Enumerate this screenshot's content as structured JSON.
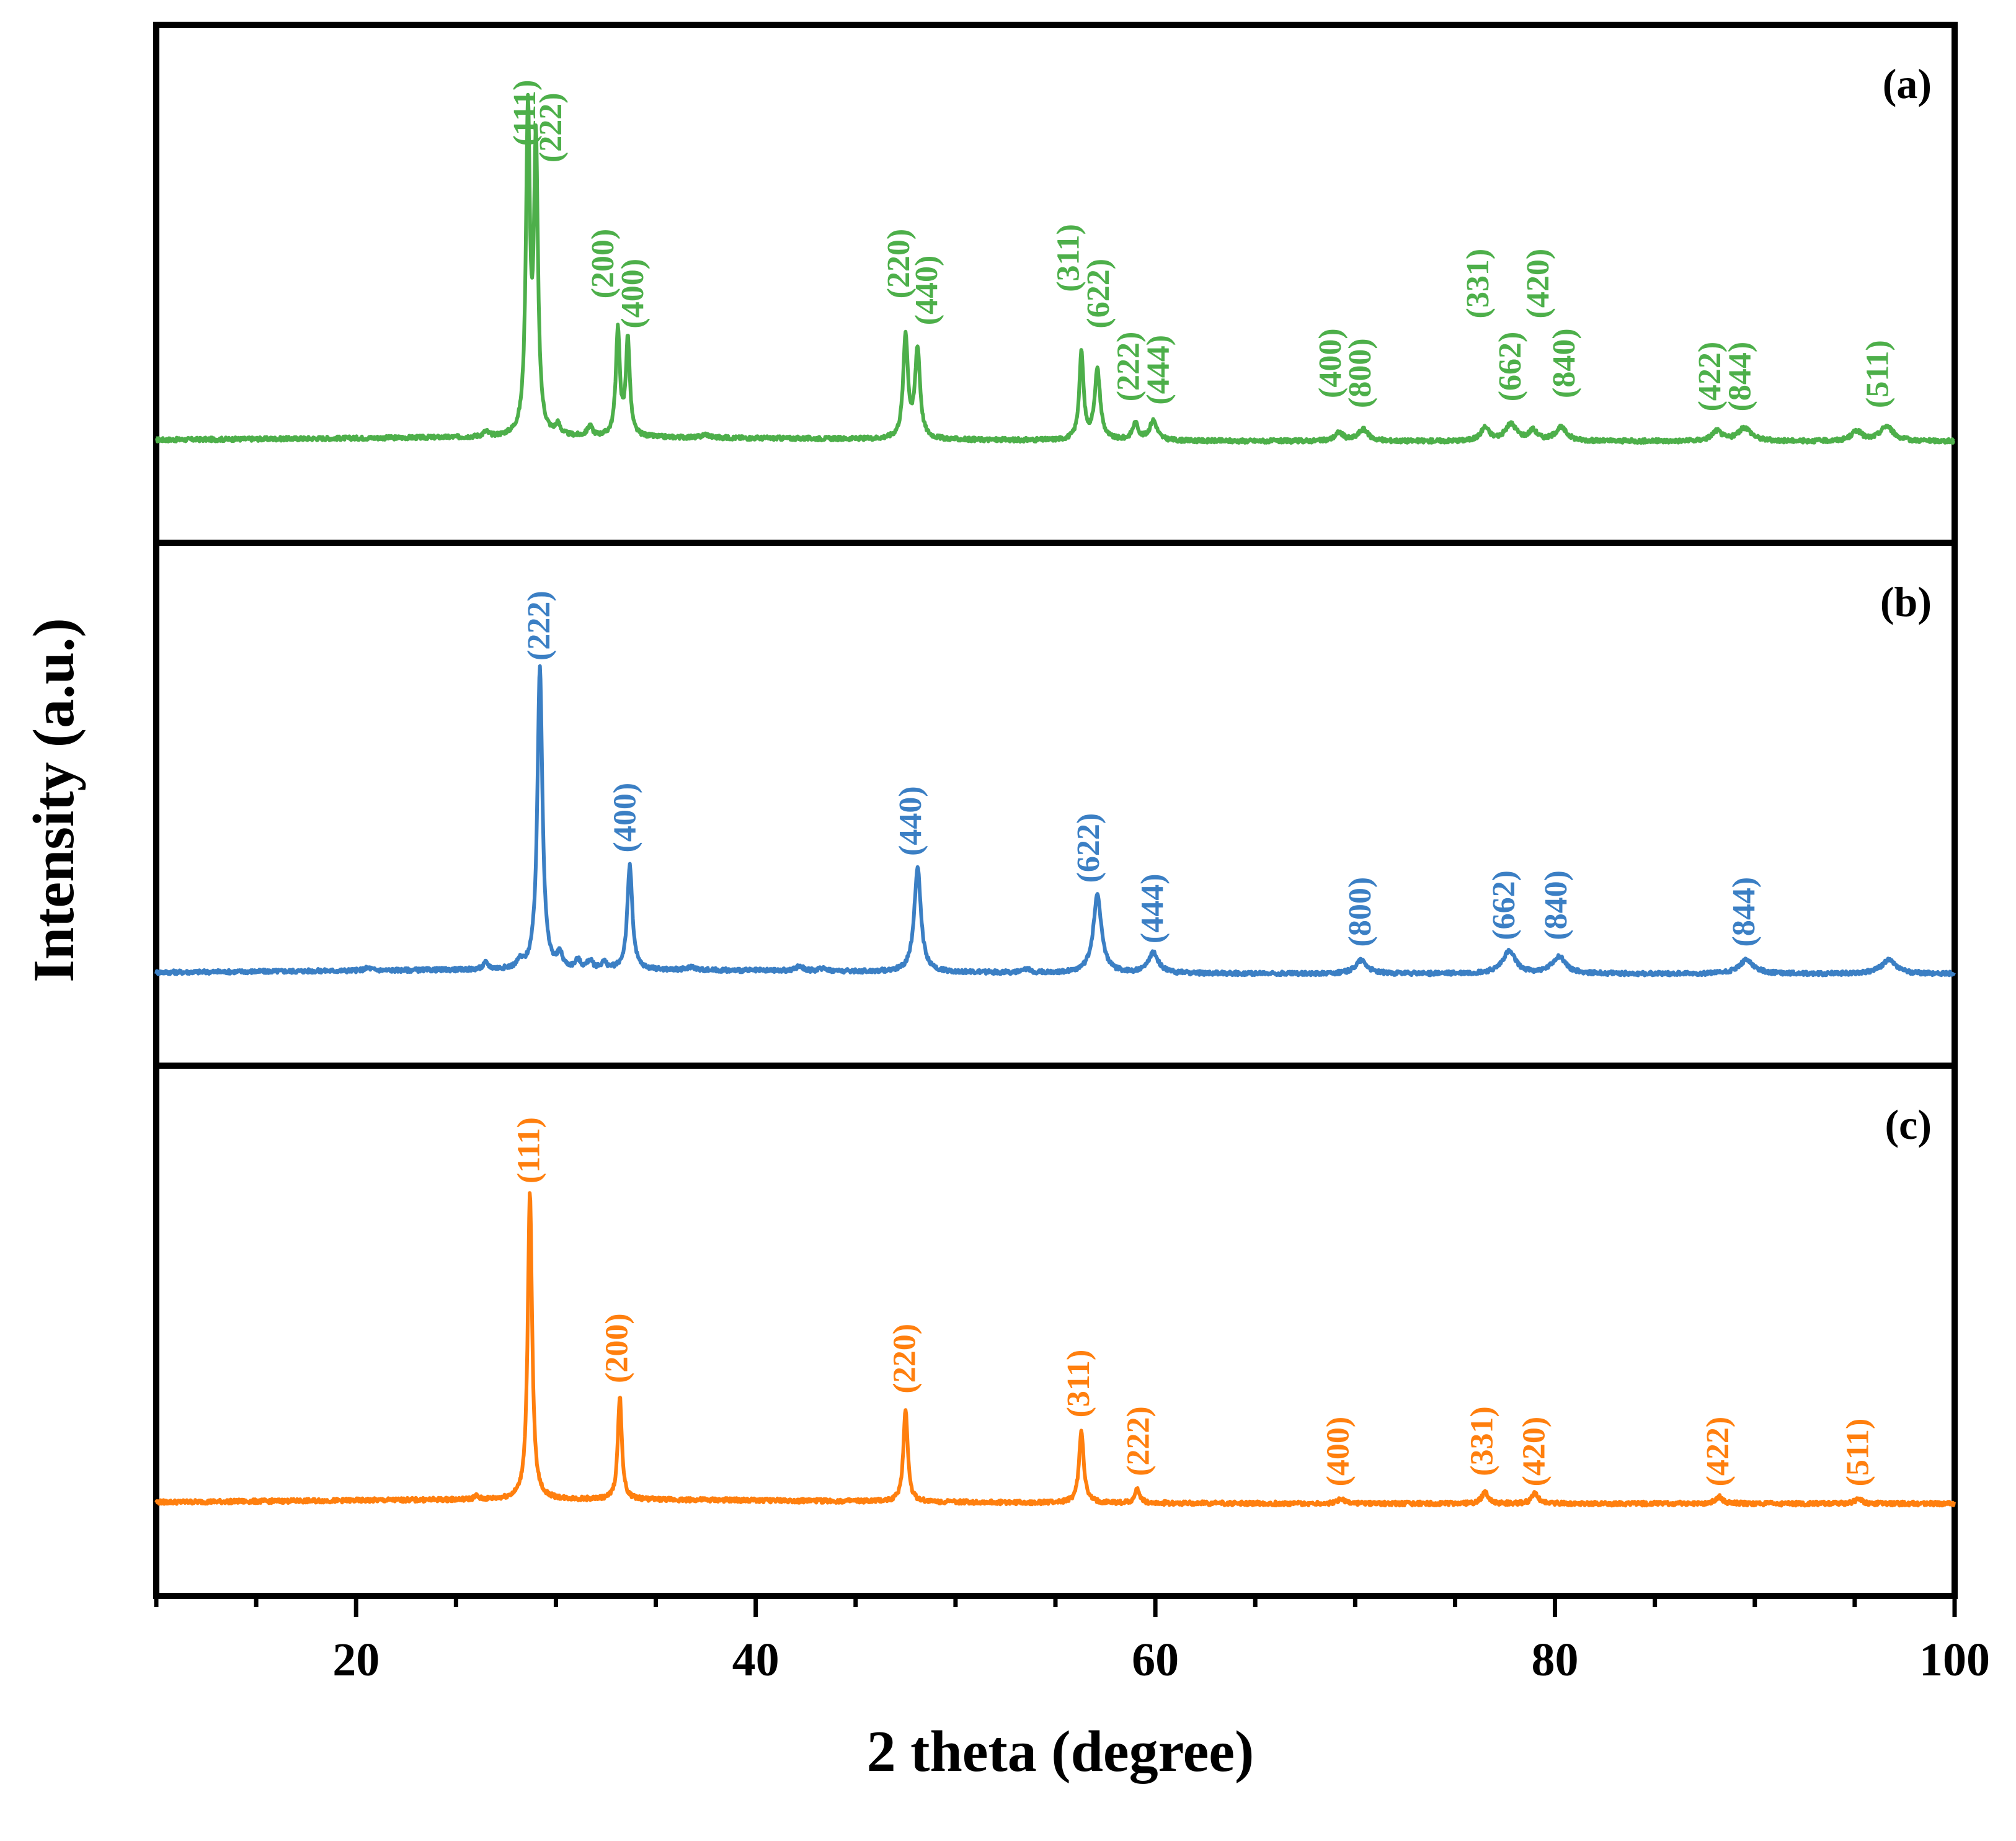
{
  "chart_data": {
    "type": "line",
    "xlabel": "2 theta (degree)",
    "ylabel": "Intensity (a.u.)",
    "xlim": [
      10,
      100
    ],
    "xticks": [
      20,
      40,
      60,
      80,
      100
    ],
    "grid": false,
    "series": [
      {
        "name": "(a)",
        "panel": "(a)",
        "color": "#4daf4a",
        "baseline": 0.1,
        "peaks": [
          {
            "x": 26.5,
            "h": 0.015,
            "w": 0.15
          },
          {
            "x": 28.6,
            "h": 0.96,
            "w": 0.12
          },
          {
            "x": 29.0,
            "h": 0.86,
            "w": 0.12
          },
          {
            "x": 30.1,
            "h": 0.03,
            "w": 0.15
          },
          {
            "x": 31.7,
            "h": 0.03,
            "w": 0.15
          },
          {
            "x": 33.1,
            "h": 0.32,
            "w": 0.12
          },
          {
            "x": 33.6,
            "h": 0.29,
            "w": 0.12
          },
          {
            "x": 37.5,
            "h": 0.01,
            "w": 0.2
          },
          {
            "x": 47.5,
            "h": 0.31,
            "w": 0.14
          },
          {
            "x": 48.1,
            "h": 0.27,
            "w": 0.15
          },
          {
            "x": 56.3,
            "h": 0.26,
            "w": 0.13
          },
          {
            "x": 57.1,
            "h": 0.21,
            "w": 0.17
          },
          {
            "x": 59.0,
            "h": 0.05,
            "w": 0.18
          },
          {
            "x": 59.9,
            "h": 0.06,
            "w": 0.22
          },
          {
            "x": 69.2,
            "h": 0.025,
            "w": 0.25
          },
          {
            "x": 70.4,
            "h": 0.035,
            "w": 0.3
          },
          {
            "x": 76.5,
            "h": 0.04,
            "w": 0.25
          },
          {
            "x": 77.8,
            "h": 0.05,
            "w": 0.35
          },
          {
            "x": 78.9,
            "h": 0.03,
            "w": 0.25
          },
          {
            "x": 80.3,
            "h": 0.04,
            "w": 0.35
          },
          {
            "x": 88.1,
            "h": 0.03,
            "w": 0.3
          },
          {
            "x": 89.5,
            "h": 0.04,
            "w": 0.4
          },
          {
            "x": 95.1,
            "h": 0.03,
            "w": 0.3
          },
          {
            "x": 96.6,
            "h": 0.045,
            "w": 0.4
          }
        ],
        "labels": [
          {
            "x": 28.6,
            "text": "(111)",
            "y": 0.99
          },
          {
            "x": 29.9,
            "text": "(222)",
            "y": 0.94
          },
          {
            "x": 32.5,
            "text": "(200)",
            "y": 0.53
          },
          {
            "x": 34.0,
            "text": "(400)",
            "y": 0.44
          },
          {
            "x": 47.3,
            "text": "(220)",
            "y": 0.53
          },
          {
            "x": 48.7,
            "text": "(440)",
            "y": 0.45
          },
          {
            "x": 55.8,
            "text": "(311)",
            "y": 0.55
          },
          {
            "x": 57.3,
            "text": "(622)",
            "y": 0.44
          },
          {
            "x": 58.8,
            "text": "(222)",
            "y": 0.22
          },
          {
            "x": 60.3,
            "text": "(444)",
            "y": 0.21
          },
          {
            "x": 68.9,
            "text": "(400)",
            "y": 0.23
          },
          {
            "x": 70.4,
            "text": "(800)",
            "y": 0.2
          },
          {
            "x": 76.3,
            "text": "(331)",
            "y": 0.47
          },
          {
            "x": 77.9,
            "text": "(662)",
            "y": 0.22
          },
          {
            "x": 79.3,
            "text": "(420)",
            "y": 0.47
          },
          {
            "x": 80.6,
            "text": "(840)",
            "y": 0.23
          },
          {
            "x": 87.9,
            "text": "(422)",
            "y": 0.19
          },
          {
            "x": 89.4,
            "text": "(844)",
            "y": 0.19
          },
          {
            "x": 96.3,
            "text": "(511)",
            "y": 0.2
          }
        ]
      },
      {
        "name": "(b)",
        "panel": "(b)",
        "color": "#3b7fc4",
        "baseline": 0.07,
        "peaks": [
          {
            "x": 20.6,
            "h": 0.008,
            "w": 0.2
          },
          {
            "x": 26.5,
            "h": 0.02,
            "w": 0.15
          },
          {
            "x": 28.2,
            "h": 0.02,
            "w": 0.15
          },
          {
            "x": 29.2,
            "h": 0.9,
            "w": 0.15
          },
          {
            "x": 30.2,
            "h": 0.04,
            "w": 0.15
          },
          {
            "x": 31.1,
            "h": 0.025,
            "w": 0.15
          },
          {
            "x": 31.7,
            "h": 0.025,
            "w": 0.15
          },
          {
            "x": 32.4,
            "h": 0.02,
            "w": 0.15
          },
          {
            "x": 33.7,
            "h": 0.31,
            "w": 0.15
          },
          {
            "x": 36.8,
            "h": 0.01,
            "w": 0.2
          },
          {
            "x": 42.2,
            "h": 0.015,
            "w": 0.2
          },
          {
            "x": 43.4,
            "h": 0.01,
            "w": 0.2
          },
          {
            "x": 48.1,
            "h": 0.31,
            "w": 0.2
          },
          {
            "x": 53.6,
            "h": 0.01,
            "w": 0.2
          },
          {
            "x": 57.1,
            "h": 0.23,
            "w": 0.25
          },
          {
            "x": 59.9,
            "h": 0.06,
            "w": 0.3
          },
          {
            "x": 70.3,
            "h": 0.04,
            "w": 0.35
          },
          {
            "x": 77.7,
            "h": 0.065,
            "w": 0.4
          },
          {
            "x": 80.2,
            "h": 0.05,
            "w": 0.4
          },
          {
            "x": 89.6,
            "h": 0.04,
            "w": 0.45
          },
          {
            "x": 96.7,
            "h": 0.04,
            "w": 0.45
          }
        ],
        "labels": [
          {
            "x": 29.3,
            "text": "(222)",
            "y": 1.0
          },
          {
            "x": 33.6,
            "text": "(400)",
            "y": 0.43
          },
          {
            "x": 47.9,
            "text": "(440)",
            "y": 0.42
          },
          {
            "x": 56.8,
            "text": "(622)",
            "y": 0.34
          },
          {
            "x": 60.0,
            "text": "(444)",
            "y": 0.16
          },
          {
            "x": 70.4,
            "text": "(800)",
            "y": 0.15
          },
          {
            "x": 77.6,
            "text": "(662)",
            "y": 0.17
          },
          {
            "x": 80.2,
            "text": "(840)",
            "y": 0.17
          },
          {
            "x": 89.6,
            "text": "(844)",
            "y": 0.15
          }
        ]
      },
      {
        "name": "(c)",
        "panel": "(c)",
        "color": "#ff7f0e",
        "baseline": 0.07,
        "peaks": [
          {
            "x": 26.0,
            "h": 0.01,
            "w": 0.12
          },
          {
            "x": 28.7,
            "h": 0.89,
            "w": 0.13
          },
          {
            "x": 33.2,
            "h": 0.3,
            "w": 0.12
          },
          {
            "x": 47.5,
            "h": 0.27,
            "w": 0.13
          },
          {
            "x": 56.3,
            "h": 0.21,
            "w": 0.14
          },
          {
            "x": 59.1,
            "h": 0.04,
            "w": 0.15
          },
          {
            "x": 69.3,
            "h": 0.015,
            "w": 0.18
          },
          {
            "x": 76.5,
            "h": 0.035,
            "w": 0.18
          },
          {
            "x": 79.0,
            "h": 0.03,
            "w": 0.2
          },
          {
            "x": 88.2,
            "h": 0.02,
            "w": 0.2
          },
          {
            "x": 95.2,
            "h": 0.015,
            "w": 0.2
          }
        ],
        "labels": [
          {
            "x": 28.8,
            "text": "(111)",
            "y": 1.0
          },
          {
            "x": 33.2,
            "text": "(200)",
            "y": 0.42
          },
          {
            "x": 47.6,
            "text": "(220)",
            "y": 0.39
          },
          {
            "x": 56.3,
            "text": "(311)",
            "y": 0.32
          },
          {
            "x": 59.3,
            "text": "(222)",
            "y": 0.15
          },
          {
            "x": 69.3,
            "text": "(400)",
            "y": 0.12
          },
          {
            "x": 76.5,
            "text": "(331)",
            "y": 0.15
          },
          {
            "x": 79.1,
            "text": "(420)",
            "y": 0.12
          },
          {
            "x": 88.3,
            "text": "(422)",
            "y": 0.12
          },
          {
            "x": 95.3,
            "text": "(511)",
            "y": 0.12
          }
        ]
      }
    ]
  }
}
